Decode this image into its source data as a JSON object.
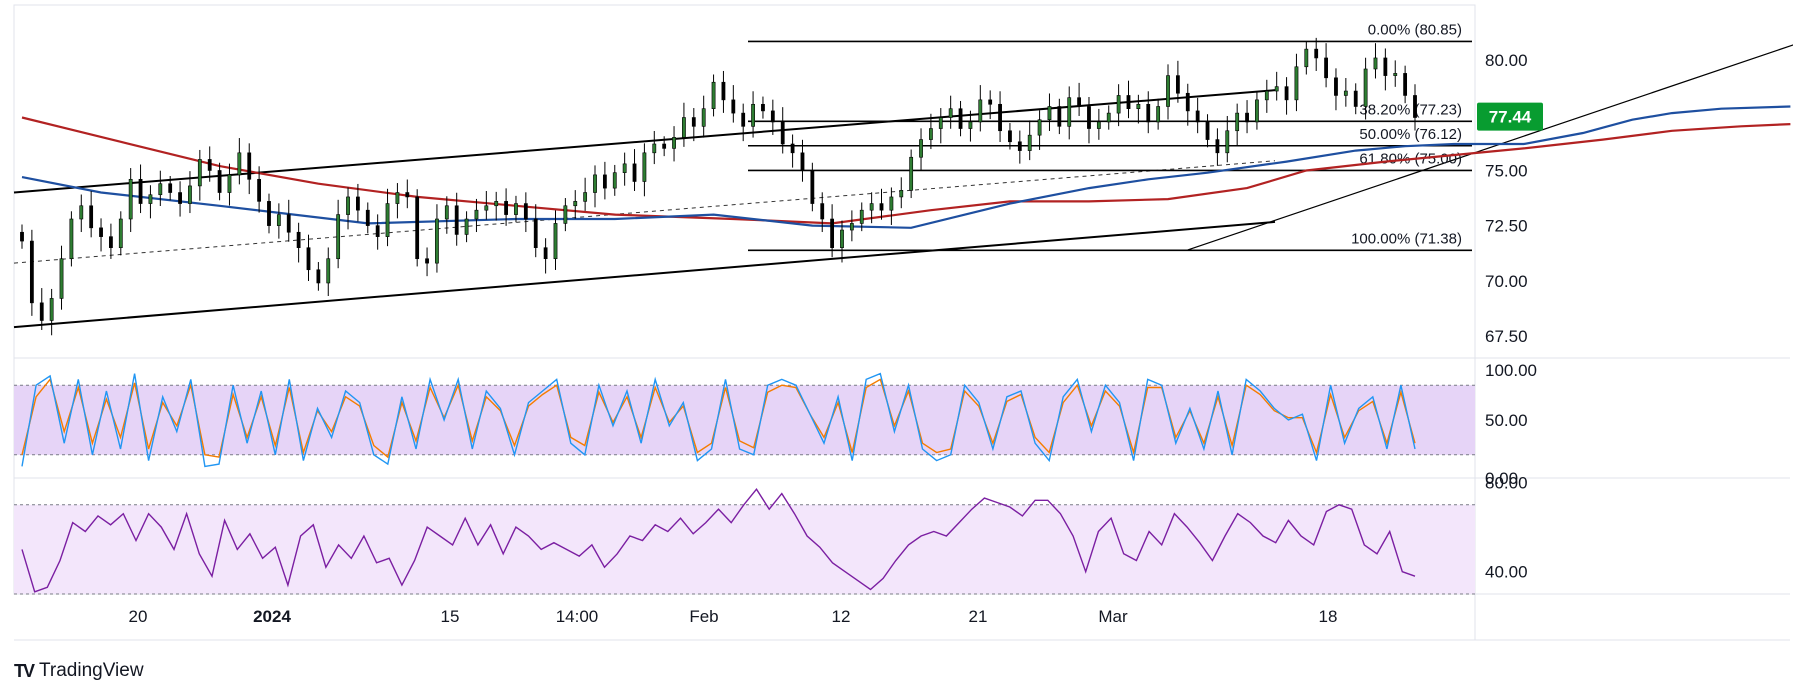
{
  "chart_data": {
    "type": "candlestick",
    "instrument_price_label": "77.44",
    "x_ticks": [
      "20",
      "2024",
      "15",
      "14:00",
      "Feb",
      "12",
      "21",
      "Mar",
      "18"
    ],
    "price_axis": {
      "ticks": [
        "80.00",
        "75.00",
        "72.50",
        "70.00",
        "67.50"
      ],
      "ylim": [
        66.5,
        82.5
      ]
    },
    "fibonacci": [
      {
        "label": "0.00% (80.85)",
        "value": 80.85
      },
      {
        "label": "38.20% (77.23)",
        "value": 77.23
      },
      {
        "label": "50.00% (76.12)",
        "value": 76.12
      },
      {
        "label": "61.80% (75.00)",
        "value": 75.0
      },
      {
        "label": "100.00% (71.38)",
        "value": 71.38
      }
    ],
    "channel": {
      "upper": [
        [
          0,
          74.0
        ],
        [
          200,
          81.3
        ]
      ],
      "lower": [
        [
          0,
          67.9
        ],
        [
          200,
          75.4
        ]
      ],
      "mid": [
        [
          0,
          70.8
        ],
        [
          200,
          78.1
        ]
      ]
    },
    "rising_line": [
      [
        118,
        71.4
      ],
      [
        180,
        80.8
      ]
    ],
    "close": [
      71.8,
      69.0,
      68.2,
      69.2,
      71.0,
      72.8,
      73.4,
      72.4,
      72.0,
      71.5,
      72.8,
      74.6,
      73.5,
      73.9,
      74.4,
      74.0,
      73.5,
      74.3,
      75.5,
      75.0,
      74.0,
      74.8,
      75.8,
      74.6,
      73.6,
      72.5,
      73.0,
      72.2,
      71.5,
      70.5,
      69.9,
      71.0,
      73.0,
      73.8,
      73.2,
      72.5,
      72.0,
      73.5,
      74.0,
      73.8,
      71.0,
      70.8,
      72.8,
      73.4,
      72.1,
      72.8,
      73.2,
      73.4,
      73.6,
      73.0,
      73.5,
      72.8,
      71.5,
      71.0,
      72.6,
      73.4,
      73.6,
      74.0,
      74.8,
      74.2,
      74.9,
      75.3,
      74.5,
      75.8,
      76.2,
      76.0,
      76.5,
      77.4,
      77.0,
      77.8,
      79.0,
      78.2,
      77.6,
      77.0,
      78.0,
      77.7,
      77.2,
      76.2,
      75.8,
      75.0,
      73.5,
      72.8,
      71.5,
      72.3,
      72.6,
      73.2,
      73.5,
      73.2,
      73.8,
      74.1,
      75.6,
      76.4,
      76.9,
      77.4,
      77.8,
      76.9,
      77.2,
      78.2,
      78.0,
      76.8,
      76.3,
      75.9,
      76.6,
      77.3,
      77.9,
      77.0,
      78.3,
      77.9,
      76.9,
      77.2,
      77.6,
      78.4,
      77.8,
      78.0,
      77.2,
      77.9,
      79.3,
      78.5,
      77.7,
      77.2,
      76.4,
      75.8,
      76.8,
      77.6,
      77.2,
      78.2,
      78.6,
      78.8,
      78.2,
      79.7,
      80.5,
      80.1,
      79.2,
      78.4,
      78.6,
      77.9,
      79.6,
      80.1,
      79.3,
      79.4,
      78.4,
      77.4
    ],
    "sma_blue": [
      [
        0,
        74.7
      ],
      [
        8,
        74.0
      ],
      [
        20,
        73.4
      ],
      [
        35,
        72.6
      ],
      [
        50,
        72.8
      ],
      [
        60,
        72.8
      ],
      [
        70,
        73.0
      ],
      [
        80,
        72.5
      ],
      [
        90,
        72.4
      ],
      [
        100,
        73.5
      ],
      [
        108,
        74.2
      ],
      [
        114,
        74.6
      ],
      [
        120,
        74.9
      ],
      [
        128,
        75.4
      ],
      [
        135,
        75.9
      ],
      [
        140,
        76.1
      ],
      [
        145,
        76.2
      ],
      [
        152,
        76.2
      ],
      [
        158,
        76.7
      ],
      [
        163,
        77.3
      ],
      [
        167,
        77.6
      ],
      [
        172,
        77.8
      ],
      [
        179,
        77.9
      ]
    ],
    "sma_red": [
      [
        0,
        77.4
      ],
      [
        10,
        76.3
      ],
      [
        20,
        75.2
      ],
      [
        30,
        74.4
      ],
      [
        40,
        73.8
      ],
      [
        50,
        73.4
      ],
      [
        60,
        73.0
      ],
      [
        72,
        72.8
      ],
      [
        82,
        72.6
      ],
      [
        92,
        73.2
      ],
      [
        100,
        73.6
      ],
      [
        108,
        73.6
      ],
      [
        116,
        73.7
      ],
      [
        124,
        74.2
      ],
      [
        130,
        75.0
      ],
      [
        138,
        75.4
      ],
      [
        145,
        75.7
      ],
      [
        152,
        76.0
      ],
      [
        160,
        76.4
      ],
      [
        167,
        76.8
      ],
      [
        174,
        77.0
      ],
      [
        179,
        77.1
      ]
    ],
    "stoch_axis": {
      "ticks": [
        "100.00",
        "50.00",
        "0.00"
      ],
      "ylim": [
        0,
        100
      ],
      "bands": [
        80,
        20
      ]
    },
    "stoch_k": [
      10,
      80,
      88,
      30,
      85,
      20,
      75,
      25,
      90,
      15,
      70,
      40,
      85,
      10,
      12,
      80,
      30,
      75,
      20,
      85,
      15,
      60,
      35,
      75,
      65,
      20,
      12,
      70,
      25,
      85,
      50,
      85,
      25,
      75,
      60,
      20,
      65,
      75,
      85,
      30,
      20,
      80,
      45,
      75,
      30,
      85,
      45,
      65,
      15,
      25,
      85,
      25,
      20,
      80,
      85,
      80,
      55,
      30,
      70,
      15,
      85,
      90,
      40,
      80,
      25,
      15,
      20,
      80,
      65,
      25,
      70,
      75,
      30,
      15,
      70,
      85,
      40,
      80,
      65,
      15,
      85,
      80,
      30,
      60,
      25,
      75,
      20,
      85,
      75,
      60,
      50,
      55,
      15,
      80,
      30,
      60,
      70,
      25,
      80,
      25
    ],
    "stoch_d": [
      20,
      70,
      85,
      40,
      78,
      30,
      68,
      35,
      82,
      25,
      65,
      45,
      80,
      20,
      18,
      72,
      35,
      70,
      28,
      78,
      22,
      58,
      40,
      70,
      62,
      28,
      18,
      65,
      32,
      78,
      52,
      80,
      32,
      70,
      58,
      28,
      62,
      72,
      80,
      35,
      28,
      74,
      48,
      70,
      35,
      78,
      48,
      62,
      22,
      30,
      78,
      32,
      26,
      74,
      80,
      78,
      55,
      35,
      65,
      22,
      78,
      85,
      45,
      75,
      30,
      22,
      25,
      75,
      62,
      30,
      66,
      72,
      35,
      22,
      65,
      80,
      45,
      75,
      62,
      22,
      78,
      78,
      35,
      58,
      30,
      70,
      28,
      80,
      72,
      58,
      52,
      52,
      22,
      72,
      35,
      58,
      66,
      30,
      74,
      30
    ],
    "rsi_axis": {
      "ticks": [
        "80.00",
        "40.00"
      ],
      "ylim": [
        30,
        82
      ],
      "bands": [
        70,
        30
      ]
    },
    "rsi": [
      50,
      31,
      33,
      45,
      62,
      58,
      65,
      61,
      66,
      54,
      66,
      60,
      50,
      66,
      48,
      38,
      63,
      50,
      57,
      46,
      51,
      34,
      56,
      61,
      42,
      52,
      46,
      56,
      44,
      46,
      34,
      45,
      60,
      56,
      52,
      64,
      52,
      61,
      48,
      60,
      56,
      50,
      53,
      50,
      47,
      52,
      42,
      48,
      56,
      54,
      61,
      58,
      64,
      57,
      62,
      68,
      62,
      70,
      77,
      68,
      75,
      66,
      56,
      51,
      44,
      40,
      36,
      32,
      37,
      45,
      52,
      56,
      58,
      56,
      62,
      68,
      73,
      71,
      69,
      65,
      72,
      72,
      66,
      56,
      40,
      58,
      64,
      48,
      45,
      58,
      52,
      66,
      60,
      53,
      45,
      56,
      66,
      62,
      56,
      53,
      63,
      56,
      52,
      67,
      70,
      68,
      52,
      48,
      58,
      40,
      38
    ]
  }
}
